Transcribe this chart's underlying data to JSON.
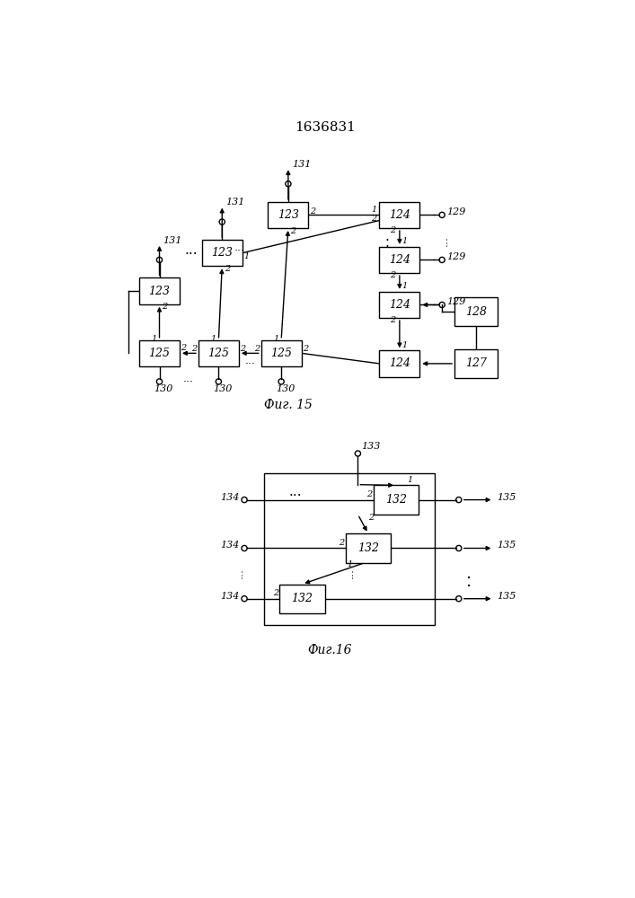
{
  "title": "1636831",
  "fig15_caption": "Фиг. 15",
  "fig16_caption": "Фиг.16",
  "bg_color": "#ffffff",
  "lc": "#000000",
  "tc": "#000000",
  "lw": 1.0
}
